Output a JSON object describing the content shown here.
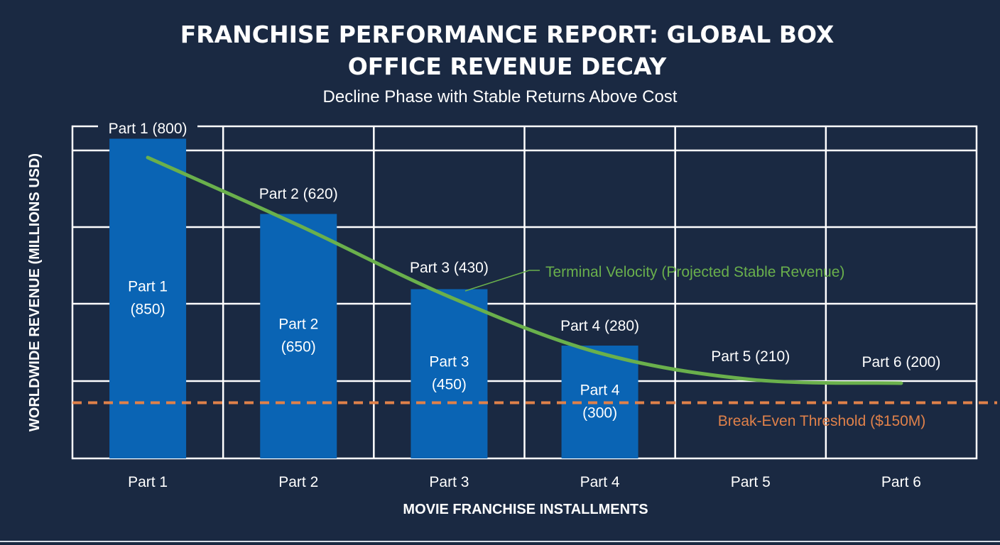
{
  "chart_data": {
    "type": "bar",
    "title_lines": [
      "FRANCHISE PERFORMANCE REPORT: GLOBAL BOX",
      "OFFICE REVENUE DECAY"
    ],
    "subtitle": "Decline Phase with Stable Returns Above Cost",
    "xlabel": "MOVIE FRANCHISE INSTALLMENTS",
    "ylabel": "WORLDWIDE REVENUE (MILLIONS USD)",
    "ylim": [
      0,
      883
    ],
    "grid": true,
    "categories": [
      "Part 1",
      "Part 2",
      "Part 3",
      "Part 4",
      "Part 5",
      "Part 6"
    ],
    "bars": {
      "values": [
        850,
        650,
        450,
        300
      ],
      "labels": [
        [
          "Part 1",
          "(850)"
        ],
        [
          "Part 2",
          "(650)"
        ],
        [
          "Part 3",
          "(450)"
        ],
        [
          "Part 4",
          "(300)"
        ]
      ],
      "color": "#0a64b4"
    },
    "line": {
      "values": [
        800,
        620,
        430,
        280,
        210,
        200
      ],
      "labels": [
        "Part 1 (800)",
        "Part 2 (620)",
        "Part 3 (430)",
        "Part 4 (280)",
        "Part 5 (210)",
        "Part 6 (200)"
      ],
      "annotation": "Terminal Velocity (Projected Stable Revenue)",
      "color": "#6ab04c"
    },
    "threshold": {
      "value": 150,
      "label": "Break-Even Threshold ($150M)",
      "color": "#e0814a"
    },
    "background": "#1a2942"
  }
}
